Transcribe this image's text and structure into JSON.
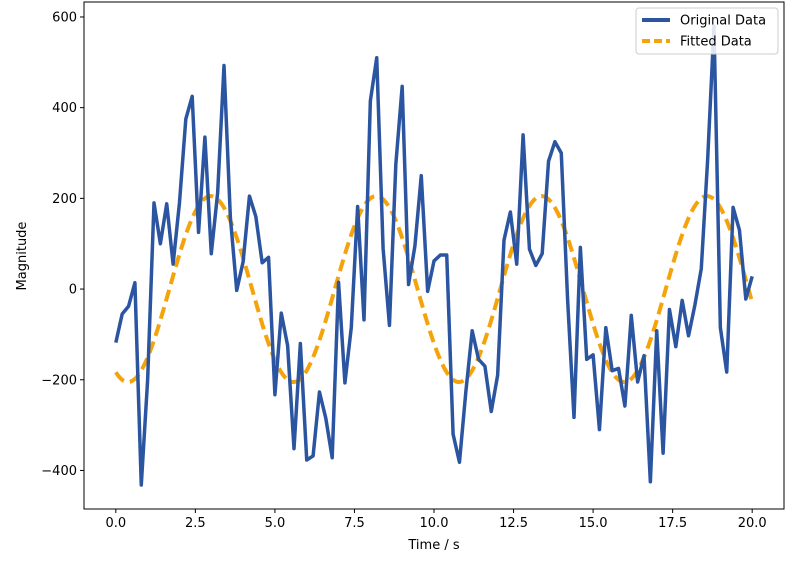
{
  "chart_data": {
    "type": "line",
    "xlabel": "Time / s",
    "ylabel": "Magnitude",
    "xlim": [
      -1.0,
      21.0
    ],
    "ylim": [
      -485,
      633
    ],
    "xticks": [
      0.0,
      2.5,
      5.0,
      7.5,
      10.0,
      12.5,
      15.0,
      17.5,
      20.0
    ],
    "xtick_labels": [
      "0.0",
      "2.5",
      "5.0",
      "7.5",
      "10.0",
      "12.5",
      "15.0",
      "17.5",
      "20.0"
    ],
    "yticks": [
      -400,
      -200,
      0,
      200,
      400,
      600
    ],
    "ytick_labels": [
      "−400",
      "−200",
      "0",
      "200",
      "400",
      "600"
    ],
    "grid": false,
    "legend_position": "top-right",
    "series": [
      {
        "name": "Original Data",
        "color": "#2b55a0",
        "style": "solid",
        "x": [
          0.0,
          0.2,
          0.4,
          0.6,
          0.8,
          1.0,
          1.2,
          1.4,
          1.6,
          1.8,
          2.0,
          2.2,
          2.4,
          2.6,
          2.8,
          3.0,
          3.2,
          3.4,
          3.6,
          3.8,
          4.0,
          4.2,
          4.4,
          4.6,
          4.8,
          5.0,
          5.2,
          5.4,
          5.6,
          5.8,
          6.0,
          6.2,
          6.4,
          6.6,
          6.8,
          7.0,
          7.2,
          7.4,
          7.6,
          7.8,
          8.0,
          8.2,
          8.4,
          8.6,
          8.8,
          9.0,
          9.2,
          9.4,
          9.6,
          9.8,
          10.0,
          10.2,
          10.4,
          10.6,
          10.8,
          11.0,
          11.2,
          11.4,
          11.6,
          11.8,
          12.0,
          12.2,
          12.4,
          12.6,
          12.8,
          13.0,
          13.2,
          13.4,
          13.6,
          13.8,
          14.0,
          14.2,
          14.4,
          14.6,
          14.8,
          15.0,
          15.2,
          15.4,
          15.6,
          15.8,
          16.0,
          16.2,
          16.4,
          16.6,
          16.8,
          17.0,
          17.2,
          17.4,
          17.6,
          17.8,
          18.0,
          18.2,
          18.4,
          18.6,
          18.8,
          19.0,
          19.2,
          19.4,
          19.6,
          19.8,
          20.0
        ],
        "y": [
          -118,
          -55,
          -38,
          14,
          -432,
          -200,
          190,
          100,
          188,
          55,
          190,
          375,
          425,
          125,
          335,
          78,
          212,
          493,
          158,
          -3,
          60,
          205,
          160,
          58,
          70,
          -233,
          -53,
          -125,
          -352,
          -120,
          -377,
          -368,
          -227,
          -285,
          -372,
          15,
          -207,
          -85,
          182,
          -68,
          415,
          510,
          90,
          -80,
          275,
          447,
          10,
          95,
          250,
          -5,
          62,
          75,
          75,
          -320,
          -382,
          -227,
          -92,
          -155,
          -170,
          -270,
          -190,
          108,
          170,
          55,
          340,
          88,
          52,
          78,
          282,
          325,
          300,
          -25,
          -283,
          92,
          -155,
          -145,
          -310,
          -85,
          -180,
          -175,
          -258,
          -58,
          -205,
          -147,
          -425,
          -92,
          -362,
          -45,
          -127,
          -25,
          -103,
          -35,
          45,
          285,
          580,
          -85,
          -183,
          180,
          130,
          -22,
          28
        ]
      },
      {
        "name": "Fitted Data",
        "color": "#f5a30a",
        "style": "dashed",
        "model": {
          "amplitude": 205,
          "period_s": 5.2,
          "phase_rad": 4.25,
          "offset": 0
        }
      }
    ]
  }
}
